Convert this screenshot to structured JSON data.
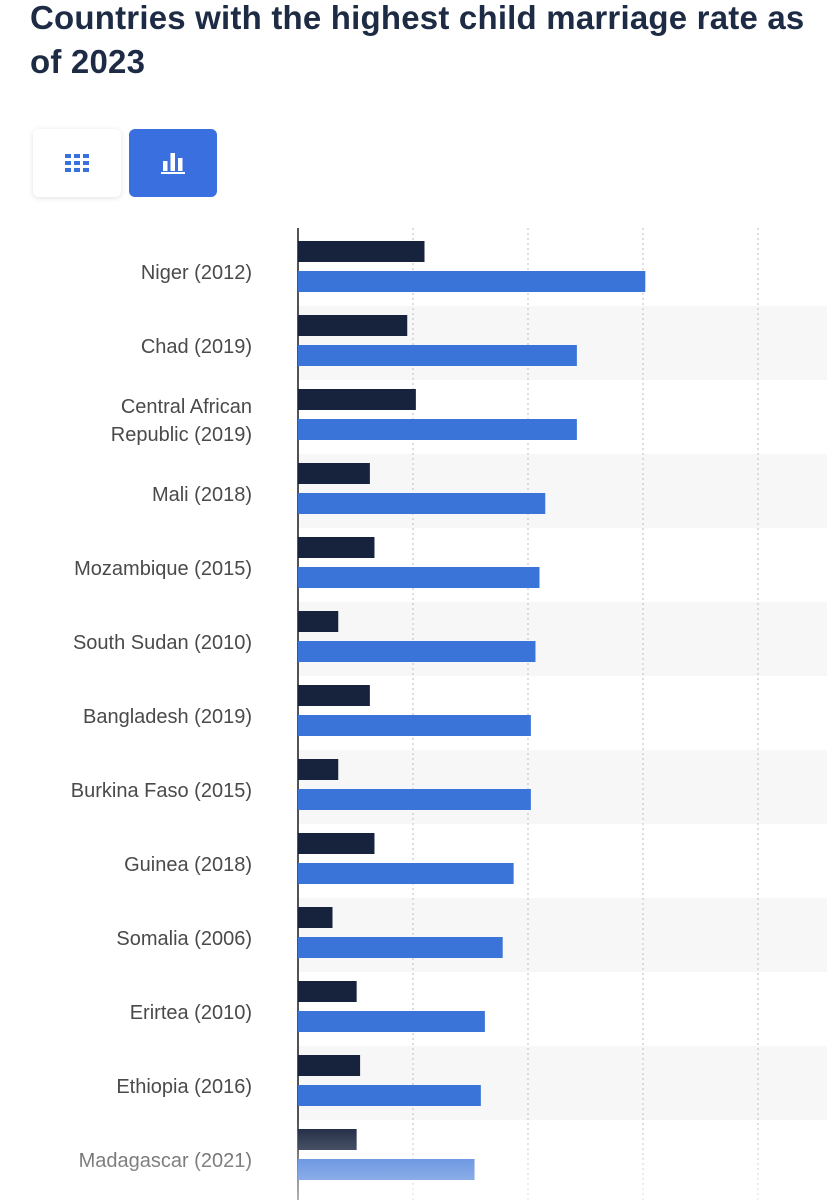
{
  "page_title": "Countries with the highest child marriage rate as of 2023",
  "view_toggle": {
    "table_icon": "table-grid-icon",
    "chart_icon": "bar-chart-icon",
    "active": "chart",
    "accent_color": "#3a6fe0"
  },
  "chart_data": {
    "type": "bar",
    "orientation": "horizontal",
    "title": "Countries with the highest child marriage rate as of 2023",
    "xlabel": "",
    "ylabel": "",
    "categories": [
      [
        "Niger (2012)"
      ],
      [
        "Chad (2019)"
      ],
      [
        "Central African",
        "Republic (2019)"
      ],
      [
        "Mali (2018)"
      ],
      [
        "Mozambique (2015)"
      ],
      [
        "South Sudan (2010)"
      ],
      [
        "Bangladesh (2019)"
      ],
      [
        "Burkina Faso (2015)"
      ],
      [
        "Guinea (2018)"
      ],
      [
        "Somalia (2006)"
      ],
      [
        "Erirtea (2010)"
      ],
      [
        "Ethiopia (2016)"
      ],
      [
        "Madagascar (2021)"
      ]
    ],
    "xlim": [
      0,
      80
    ],
    "grid": "vertical dotted lines",
    "series": [
      {
        "color": "#17233d",
        "values": [
          22,
          19,
          20.5,
          12.5,
          13.3,
          7,
          12.5,
          7,
          13.3,
          6,
          10.2,
          10.8,
          10.2
        ]
      },
      {
        "color": "#3a74d8",
        "values": [
          60.4,
          48.5,
          48.5,
          43,
          42,
          41.3,
          40.5,
          40.5,
          37.5,
          35.6,
          32.5,
          31.8,
          30.7
        ]
      }
    ]
  }
}
